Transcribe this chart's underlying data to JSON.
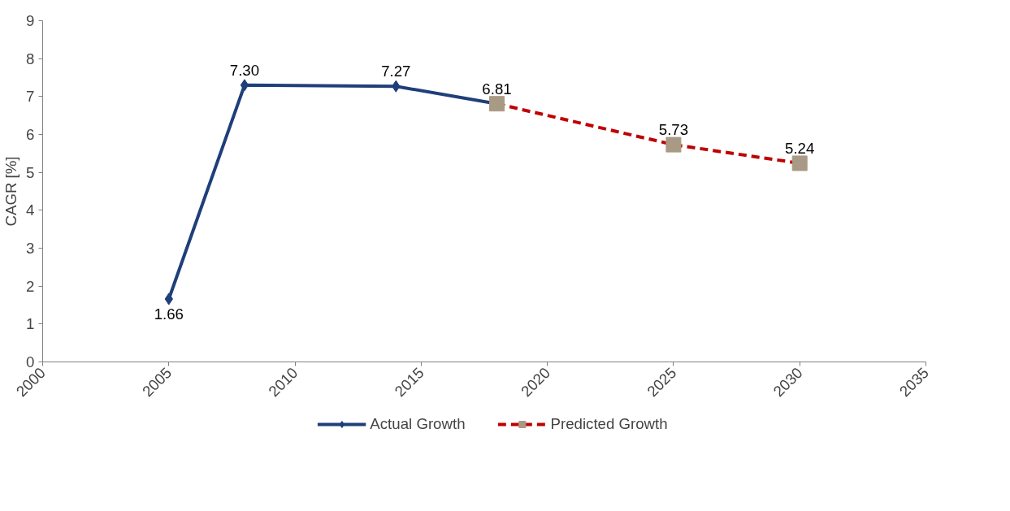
{
  "chart_data": {
    "type": "line",
    "ylabel": "CAGR [%]",
    "xlim": [
      2000,
      2035
    ],
    "xticks": [
      2000,
      2005,
      2010,
      2015,
      2020,
      2025,
      2030,
      2035
    ],
    "ylim": [
      0,
      9
    ],
    "yticks": [
      0,
      1,
      2,
      3,
      4,
      5,
      6,
      7,
      8,
      9
    ],
    "grid": false,
    "legend": "bottom",
    "series": [
      {
        "name": "Actual Growth",
        "color": "#1f3f7a",
        "x": [
          2005,
          2008,
          2014,
          2018
        ],
        "values": [
          1.66,
          7.3,
          7.27,
          6.81
        ],
        "value_labels": [
          "1.66",
          "7.30",
          "7.27",
          "6.81"
        ],
        "marker": "diamond",
        "line_style": "solid"
      },
      {
        "name": "Predicted Growth",
        "color": "#c00000",
        "colors": [
          "#a89a85",
          "#a89a85",
          "#a89a85"
        ],
        "x": [
          2018,
          2025,
          2030
        ],
        "values": [
          6.81,
          5.73,
          5.24
        ],
        "value_labels": [
          null,
          "5.73",
          "5.24"
        ],
        "marker": "square",
        "line_style": "dashed"
      }
    ]
  }
}
